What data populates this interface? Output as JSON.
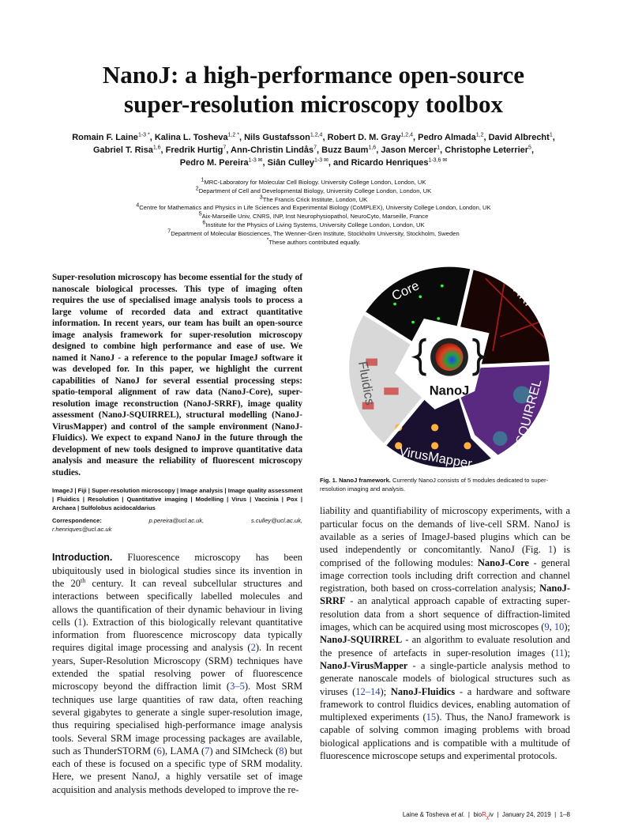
{
  "title": {
    "line1": "NanoJ: a high-performance open-source",
    "line2": "super-resolution microscopy toolbox"
  },
  "authors": [
    {
      "name": "Romain F. Laine",
      "sup": "1-3 *"
    },
    {
      "name": "Kalina L. Tosheva",
      "sup": "1,2 *"
    },
    {
      "name": "Nils Gustafsson",
      "sup": "1,2,4"
    },
    {
      "name": "Robert D. M. Gray",
      "sup": "1,2,4"
    },
    {
      "name": "Pedro Almada",
      "sup": "1,2"
    },
    {
      "name": "David Albrecht",
      "sup": "1"
    },
    {
      "name": "Gabriel T. Risa",
      "sup": "1,6"
    },
    {
      "name": "Fredrik Hurtig",
      "sup": "7"
    },
    {
      "name": "Ann-Christin Lindås",
      "sup": "7"
    },
    {
      "name": "Buzz Baum",
      "sup": "1,6"
    },
    {
      "name": "Jason Mercer",
      "sup": "1"
    },
    {
      "name": "Christophe Leterrier",
      "sup": "5"
    },
    {
      "name": "Pedro M. Pereira",
      "sup": "1-3 ✉"
    },
    {
      "name": "Siân Culley",
      "sup": "1-3 ✉"
    },
    {
      "name": "and Ricardo Henriques",
      "sup": "1-3,6 ✉"
    }
  ],
  "affiliations": [
    {
      "sup": "1",
      "text": "MRC-Laboratory for Molecular Cell Biology. University College London, London, UK"
    },
    {
      "sup": "2",
      "text": "Department of Cell and Developmental Biology, University College London, London, UK"
    },
    {
      "sup": "3",
      "text": "The Francis Crick Institute, London, UK"
    },
    {
      "sup": "4",
      "text": "Centre for Mathematics and Physics in Life Sciences and Experimental Biology (CoMPLEX), University College London, London, UK"
    },
    {
      "sup": "5",
      "text": "Aix-Marseille Univ, CNRS, INP, Inst Neurophysiopathol, NeuroCyto, Marseille, France"
    },
    {
      "sup": "6",
      "text": "Institute for the Physics of Living Systems, University College London, London, UK"
    },
    {
      "sup": "7",
      "text": "Department of Molecular Biosciences, The Wenner-Gren Institute, Stockholm University, Stockholm, Sweden"
    },
    {
      "sup": "*",
      "text": "These authors contributed equally."
    }
  ],
  "abstract": "Super-resolution microscopy has become essential for the study of nanoscale biological processes. This type of imaging often requires the use of specialised image analysis tools to process a large volume of recorded data and extract quantitative information. In recent years, our team has built an open-source image analysis framework for super-resolution microscopy designed to combine high performance and ease of use. We named it NanoJ - a reference to the popular ImageJ software it was developed for. In this paper, we highlight the current capabilities of NanoJ for several essential processing steps: spatio-temporal alignment of raw data (NanoJ-Core), super-resolution image reconstruction (NanoJ-SRRF), image quality assessment (NanoJ-SQUIRREL), structural modelling (NanoJ-VirusMapper) and control of the sample environment (NanoJ-Fluidics). We expect to expand NanoJ in the future through the development of new tools designed to improve quantitative data analysis and measure the reliability of fluorescent microscopy studies.",
  "keywords": "ImageJ | Fiji | Super-resolution microscopy | Image analysis | Image quality assessment | Fluidics | Resolution | Quantitative imaging | Modelling | Virus | Vaccinia | Pox | Archaea | Sulfolobus acidocaldarius",
  "correspondence": {
    "label": "Correspondence:",
    "emails": [
      "p.pereira@ucl.ac.uk,",
      "s.culley@ucl.ac.uk,",
      "r.henriques@ucl.ac.uk"
    ]
  },
  "intro": [
    {
      "t": "h",
      "v": "Introduction."
    },
    {
      "t": "n",
      "v": " Fluorescence microscopy has been ubiquitously used in biological studies since its invention in the 20"
    },
    {
      "t": "sup",
      "v": "th"
    },
    {
      "t": "n",
      "v": " century. It can reveal subcellular structures and interactions between specifically labelled molecules and allows the quantification of their dynamic behaviour in living cells ("
    },
    {
      "t": "r",
      "v": "1"
    },
    {
      "t": "n",
      "v": "). Extraction of this biologically relevant quantitative information from fluorescence microscopy data typically requires digital image processing and analysis ("
    },
    {
      "t": "r",
      "v": "2"
    },
    {
      "t": "n",
      "v": "). In recent years, Super-Resolution Microscopy (SRM) techniques have extended the spatial resolving power of fluorescence microscopy beyond the diffraction limit ("
    },
    {
      "t": "r",
      "v": "3–5"
    },
    {
      "t": "n",
      "v": "). Most SRM techniques use large quantities of raw data, often reaching several gigabytes to generate a single super-resolution image, thus requiring specialised high-performance image analysis tools. Several SRM image processing packages are available, such as ThunderSTORM ("
    },
    {
      "t": "r",
      "v": "6"
    },
    {
      "t": "n",
      "v": "), LAMA ("
    },
    {
      "t": "r",
      "v": "7"
    },
    {
      "t": "n",
      "v": ") and SIMcheck ("
    },
    {
      "t": "r",
      "v": "8"
    },
    {
      "t": "n",
      "v": ") but each of these is focused on a specific type of SRM modality. Here, we present NanoJ, a highly versatile set of image acquisition and analysis methods developed to improve the re-"
    }
  ],
  "right_text": [
    {
      "t": "n",
      "v": "liability and quantifiability of microscopy experiments, with a particular focus on the demands of live-cell SRM. NanoJ is available as a series of ImageJ-based plugins which can be used independently or concomitantly. NanoJ (Fig. "
    },
    {
      "t": "r",
      "v": "1"
    },
    {
      "t": "n",
      "v": ") is comprised of the following modules: "
    },
    {
      "t": "b",
      "v": "NanoJ-Core"
    },
    {
      "t": "n",
      "v": " - general image correction tools including drift correction and channel registration, both based on cross-correlation analysis; "
    },
    {
      "t": "b",
      "v": "NanoJ-SRRF"
    },
    {
      "t": "n",
      "v": " - an analytical approach capable of extracting super-resolution data from a short sequence of diffraction-limited images, which can be acquired using most microscopes ("
    },
    {
      "t": "r",
      "v": "9"
    },
    {
      "t": "n",
      "v": ", "
    },
    {
      "t": "r",
      "v": "10"
    },
    {
      "t": "n",
      "v": "); "
    },
    {
      "t": "b",
      "v": "NanoJ-SQUIRREL"
    },
    {
      "t": "n",
      "v": " - an algorithm to evaluate resolution and the presence of artefacts in super-resolution images ("
    },
    {
      "t": "r",
      "v": "11"
    },
    {
      "t": "n",
      "v": "); "
    },
    {
      "t": "b",
      "v": "NanoJ-VirusMapper"
    },
    {
      "t": "n",
      "v": " - a single-particle analysis method to generate nanoscale models of biological structures such as viruses ("
    },
    {
      "t": "r",
      "v": "12–14"
    },
    {
      "t": "n",
      "v": "); "
    },
    {
      "t": "b",
      "v": "NanoJ-Fluidics"
    },
    {
      "t": "n",
      "v": " - a hardware and software framework to control fluidics devices, enabling automation of multiplexed experiments ("
    },
    {
      "t": "r",
      "v": "15"
    },
    {
      "t": "n",
      "v": "). Thus, the NanoJ framework is capable of solving common imaging problems with broad biological applications and is compatible with a multitude of fluorescence microscope setups and experimental protocols."
    }
  ],
  "figure": {
    "labels": {
      "core": "Core",
      "srrf": "SRRF",
      "squirrel": "SQUIRREL",
      "virusmapper": "VirusMapper",
      "fluidics": "Fluidics",
      "center": "NanoJ"
    },
    "caption_label": "Fig. 1.",
    "caption_title": "NanoJ framework.",
    "caption_text": " Currently NanoJ consists of 5 modules dedicated to super-resolution imaging and analysis."
  },
  "footer": {
    "authors": "Laine & Tosheva",
    "etal": "et al.",
    "sep": "|",
    "journal_a": "bio",
    "journal_r": "R",
    "journal_x": "χ",
    "journal_b": "iv",
    "date": "January 24, 2019",
    "pages": "1–8"
  },
  "colors": {
    "link": "#2a3fa8",
    "biorxiv_r": "#d02020"
  }
}
